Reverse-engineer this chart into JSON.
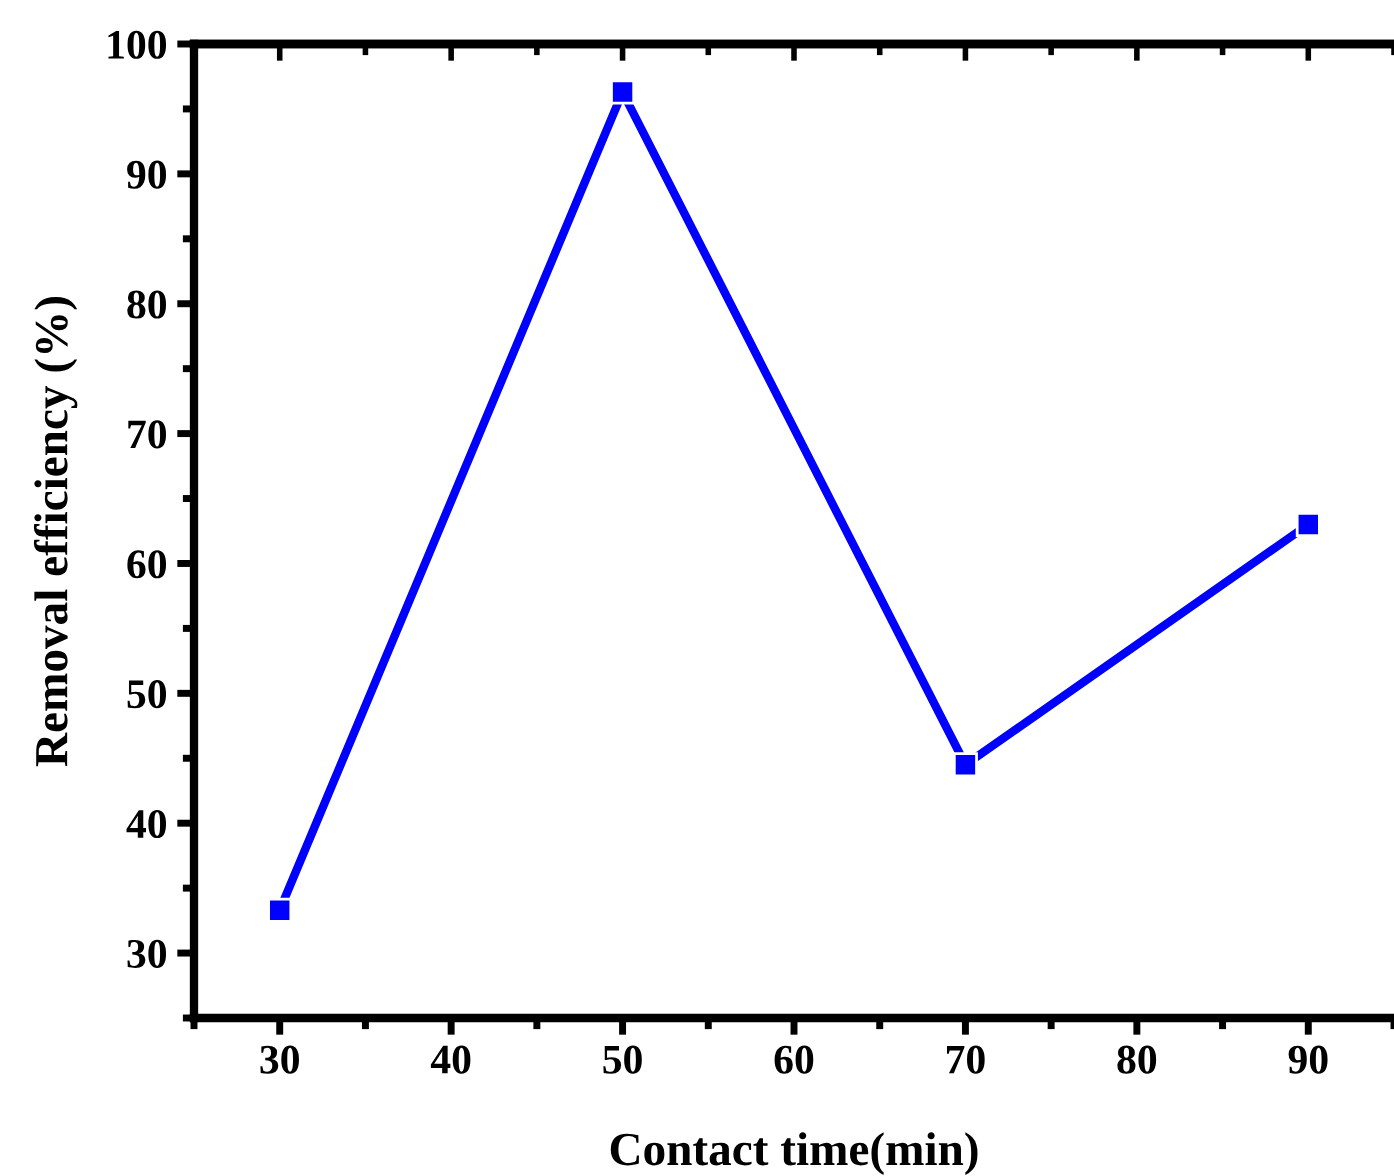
{
  "chart_data": {
    "type": "line",
    "xlabel": "Contact time(min)",
    "ylabel": "Removal efficiency (%)",
    "x": [
      30,
      50,
      70,
      90
    ],
    "series": [
      {
        "color": "#0000ff",
        "values": [
          33.3,
          96.3,
          44.5,
          63.0
        ]
      }
    ],
    "marker": "square",
    "line_style": "solid",
    "grid": false,
    "legend": false,
    "xlim": [
      25,
      95
    ],
    "xticks": [
      30,
      40,
      50,
      60,
      70,
      80,
      90
    ],
    "ylim": [
      25,
      100
    ],
    "yticks": [
      30,
      40,
      50,
      60,
      70,
      80,
      90,
      100
    ]
  }
}
